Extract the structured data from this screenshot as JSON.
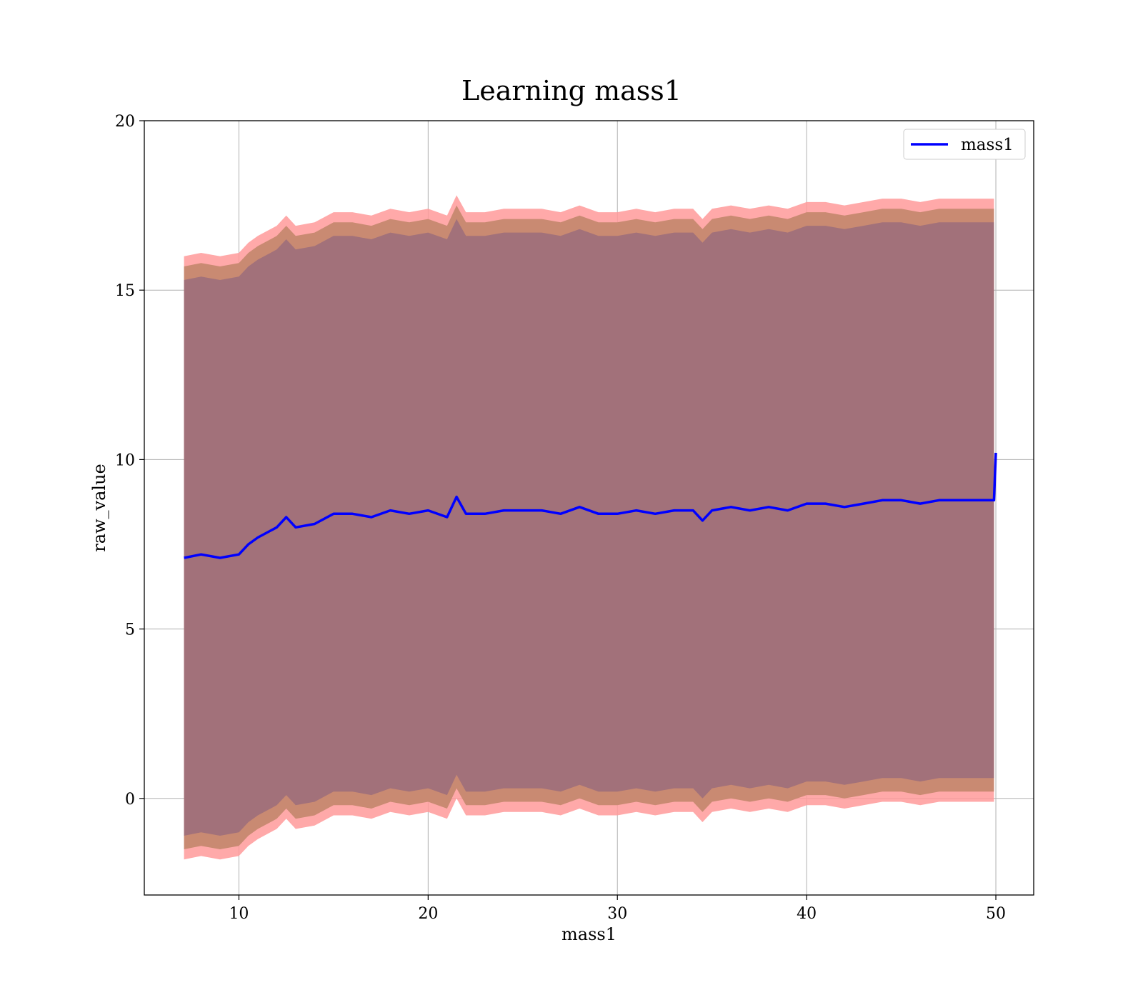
{
  "chart_data": {
    "type": "line",
    "title": "Learning mass1",
    "xlabel": "mass1",
    "ylabel": "raw_value",
    "xlim": [
      5,
      52
    ],
    "ylim": [
      -2.85,
      20
    ],
    "xticks": [
      10,
      20,
      30,
      40,
      50
    ],
    "yticks": [
      0,
      5,
      10,
      15,
      20
    ],
    "grid": true,
    "legend": {
      "position": "top-right",
      "entries": [
        "mass1"
      ]
    },
    "colors": {
      "line": "#0000ff",
      "band_outer": "#ff9a9a",
      "band_middle": "#c98a72",
      "band_inner": "#a2717a",
      "grid": "#b0b0b0"
    },
    "series": [
      {
        "name": "mass1",
        "x": [
          7.1,
          8,
          9,
          10,
          10.5,
          11,
          12,
          12.5,
          13,
          14,
          15,
          16,
          17,
          18,
          19,
          20,
          21,
          21.5,
          22,
          23,
          24,
          25,
          26,
          27,
          28,
          29,
          30,
          31,
          32,
          33,
          34,
          34.5,
          35,
          36,
          37,
          38,
          39,
          40,
          41,
          42,
          43,
          44,
          45,
          46,
          47,
          48,
          49,
          49.9,
          50
        ],
        "y": [
          7.1,
          7.2,
          7.1,
          7.2,
          7.5,
          7.7,
          8.0,
          8.3,
          8.0,
          8.1,
          8.4,
          8.4,
          8.3,
          8.5,
          8.4,
          8.5,
          8.3,
          8.9,
          8.4,
          8.4,
          8.5,
          8.5,
          8.5,
          8.4,
          8.6,
          8.4,
          8.4,
          8.5,
          8.4,
          8.5,
          8.5,
          8.2,
          8.5,
          8.6,
          8.5,
          8.6,
          8.5,
          8.7,
          8.7,
          8.6,
          8.7,
          8.8,
          8.8,
          8.7,
          8.8,
          8.8,
          8.8,
          8.8,
          10.2
        ]
      }
    ],
    "bands": [
      {
        "label": "outer",
        "lower_offset": -8.9,
        "upper_offset": 8.9
      },
      {
        "label": "middle",
        "lower_offset": -8.6,
        "upper_offset": 8.6
      },
      {
        "label": "inner",
        "lower_offset": -8.2,
        "upper_offset": 8.2
      }
    ]
  }
}
